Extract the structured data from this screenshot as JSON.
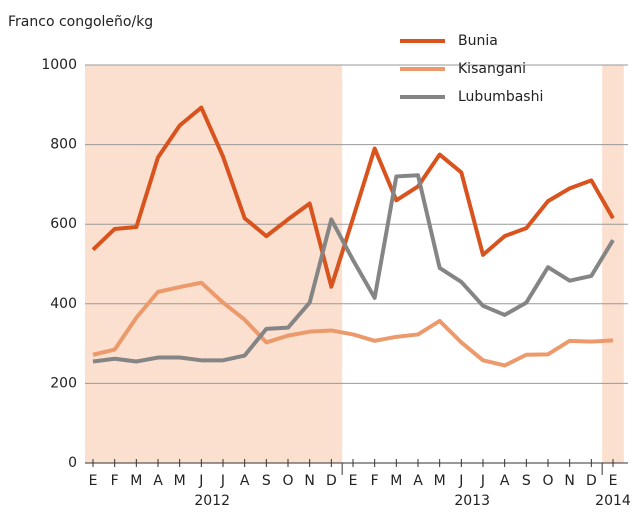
{
  "chart_data": {
    "type": "line",
    "y_label": "Franco congoleño/kg",
    "categories": [
      "E",
      "F",
      "M",
      "A",
      "M",
      "J",
      "J",
      "A",
      "S",
      "O",
      "N",
      "D",
      "E",
      "F",
      "M",
      "A",
      "M",
      "J",
      "J",
      "A",
      "S",
      "O",
      "N",
      "D",
      "E"
    ],
    "periods": [
      {
        "label": "2012",
        "months": 12
      },
      {
        "label": "2013",
        "months": 12
      },
      {
        "label": "2014",
        "months": 1
      }
    ],
    "series": [
      {
        "name": "Bunia",
        "color": "#d9531e",
        "values": [
          536,
          588,
          593,
          768,
          848,
          893,
          770,
          615,
          570,
          612,
          652,
          443,
          615,
          790,
          660,
          695,
          775,
          730,
          523,
          570,
          590,
          658,
          690,
          710,
          615
        ]
      },
      {
        "name": "Kisangani",
        "color": "#ec9a6b",
        "values": [
          272,
          285,
          365,
          430,
          442,
          453,
          403,
          360,
          303,
          320,
          330,
          333,
          323,
          307,
          317,
          323,
          357,
          303,
          258,
          245,
          272,
          273,
          307,
          305,
          308
        ]
      },
      {
        "name": "Lubumbashi",
        "color": "#858585",
        "values": [
          255,
          262,
          255,
          265,
          265,
          258,
          258,
          270,
          337,
          340,
          403,
          612,
          510,
          415,
          720,
          723,
          490,
          455,
          395,
          372,
          403,
          492,
          458,
          470,
          560
        ]
      }
    ],
    "ylim": [
      0,
      1000
    ],
    "yticks": [
      0,
      200,
      400,
      600,
      800,
      1000
    ],
    "grid": true,
    "shade_color": "#fbe0cf"
  }
}
